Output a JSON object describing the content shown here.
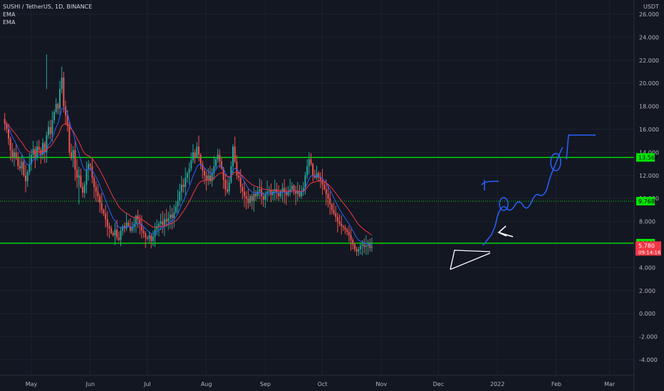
{
  "chart_data": {
    "type": "candlestick",
    "title": "SUSHI / TetherUS, 1D, BINANCE",
    "legend": [
      "EMA",
      "EMA"
    ],
    "currency": "USDT",
    "ylim": [
      -4,
      27
    ],
    "y_ticks": [
      "26.000",
      "24.000",
      "22.000",
      "20.000",
      "18.000",
      "16.000",
      "14.000",
      "12.000",
      "10.000",
      "8.000",
      "6.000",
      "4.000",
      "2.000",
      "0.000",
      "-2.000",
      "-4.000"
    ],
    "x_labels": [
      "May",
      "Jun",
      "Jul",
      "Aug",
      "Sep",
      "Oct",
      "Nov",
      "Dec",
      "2022",
      "Feb",
      "Mar"
    ],
    "x_label_days": [
      0,
      31,
      61,
      92,
      123,
      153,
      184,
      214,
      245,
      276,
      304
    ],
    "start_day_offset": -14,
    "horizontal_levels": [
      {
        "value": 13.567,
        "label": "13.567",
        "style": "solid",
        "color": "#00e600"
      },
      {
        "value": 9.768,
        "label": "9.768",
        "style": "dotted",
        "color": "#00e600"
      },
      {
        "value": 6.122,
        "label": "6.122",
        "style": "solid",
        "color": "#00e600"
      }
    ],
    "last_price": {
      "value": 5.78,
      "label": "5.780",
      "countdown": "09:14:16",
      "color": "#f23645"
    },
    "ema_colors": [
      "#2962ff",
      "#f23645"
    ],
    "candle_colors": {
      "up": "#26a69a",
      "down": "#ef5350"
    },
    "close_series": [
      16.5,
      16.0,
      15.2,
      14.2,
      13.6,
      14.0,
      13.5,
      12.8,
      12.6,
      13.2,
      12.0,
      11.5,
      12.3,
      13.0,
      13.8,
      14.3,
      13.6,
      14.5,
      14.2,
      13.8,
      14.8,
      14.0,
      15.5,
      16.2,
      15.6,
      16.8,
      17.5,
      18.2,
      17.8,
      19.5,
      20.5,
      18.0,
      17.2,
      16.3,
      14.0,
      13.5,
      14.2,
      12.5,
      11.8,
      12.0,
      11.0,
      10.5,
      11.2,
      12.5,
      13.0,
      12.8,
      11.8,
      11.0,
      10.6,
      10.2,
      9.6,
      9.0,
      8.7,
      8.2,
      7.6,
      7.4,
      7.0,
      6.8,
      7.3,
      6.6,
      6.4,
      7.2,
      7.6,
      7.4,
      7.9,
      7.6,
      7.2,
      7.5,
      7.8,
      8.5,
      8.2,
      7.8,
      7.2,
      7.0,
      6.6,
      6.5,
      6.8,
      6.3,
      6.7,
      7.3,
      7.6,
      7.8,
      8.0,
      7.7,
      8.2,
      8.0,
      8.3,
      8.6,
      8.3,
      8.8,
      9.3,
      9.8,
      10.6,
      11.2,
      11.0,
      11.8,
      12.2,
      12.6,
      13.3,
      14.0,
      13.6,
      14.5,
      13.8,
      13.0,
      12.4,
      12.0,
      11.6,
      12.0,
      11.5,
      12.2,
      12.8,
      13.4,
      13.8,
      13.2,
      12.6,
      11.6,
      10.8,
      10.6,
      11.4,
      12.8,
      14.5,
      13.2,
      12.0,
      11.8,
      11.0,
      10.6,
      10.2,
      10.0,
      9.6,
      10.2,
      9.8,
      10.4,
      10.2,
      10.6,
      10.8,
      10.2,
      9.9,
      10.4,
      10.6,
      10.7,
      10.3,
      10.6,
      10.8,
      10.5,
      10.2,
      10.6,
      10.9,
      10.5,
      10.3,
      10.6,
      10.8,
      11.1,
      10.7,
      10.4,
      10.6,
      10.2,
      10.6,
      10.9,
      12.0,
      12.8,
      13.4,
      13.0,
      12.0,
      11.8,
      12.2,
      11.8,
      11.6,
      11.2,
      10.8,
      10.4,
      10.0,
      9.5,
      9.0,
      8.7,
      8.4,
      8.0,
      7.8,
      7.6,
      7.5,
      7.3,
      7.1,
      6.8,
      6.4,
      6.0,
      5.6,
      5.4,
      5.6,
      5.9,
      6.0,
      5.8,
      5.9,
      6.0,
      5.7,
      5.8
    ]
  }
}
